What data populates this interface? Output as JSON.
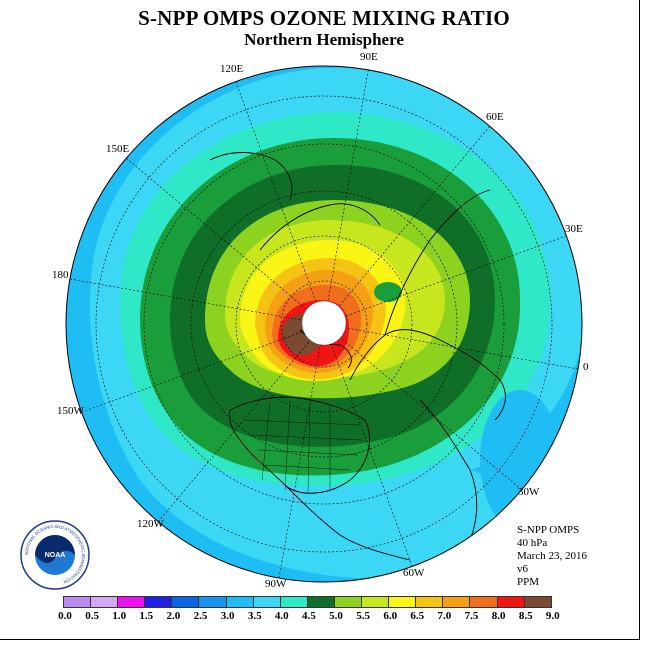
{
  "title": "S-NPP OMPS OZONE MIXING RATIO",
  "subtitle": "Northern Hemisphere",
  "longitude_labels": {
    "lon_90e": "90E",
    "lon_60e": "60E",
    "lon_30e": "30E",
    "lon_0": "0",
    "lon_30w": "30W",
    "lon_60w": "60W",
    "lon_90w": "90W",
    "lon_120w": "120W",
    "lon_150w": "150W",
    "lon_180": "180",
    "lon_150e": "150E",
    "lon_120e": "120E"
  },
  "info": {
    "instrument": "S-NPP OMPS",
    "level": "40 hPa",
    "date": "March 23, 2016",
    "version": "v6",
    "units": "PPM"
  },
  "logo": {
    "agency": "NOAA",
    "ring_text": "NATIONAL OCEANIC AND ATMOSPHERIC ADMINISTRATION"
  },
  "colorbar": {
    "ticks": [
      "0.0",
      "0.5",
      "1.0",
      "1.5",
      "2.0",
      "2.5",
      "3.0",
      "3.5",
      "4.0",
      "4.5",
      "5.0",
      "5.5",
      "6.0",
      "6.5",
      "7.0",
      "7.5",
      "8.0",
      "8.5",
      "9.0"
    ],
    "colors": [
      "#b98cf0",
      "#d7a6f5",
      "#f00ff0",
      "#1e1ee6",
      "#0a64e6",
      "#1496f0",
      "#1ebef5",
      "#3cd7f5",
      "#2ee8c8",
      "#1a9e3c",
      "#0f6e28",
      "#8cd21e",
      "#c8e61e",
      "#faf514",
      "#f5c314",
      "#f5a014",
      "#f06e1e",
      "#f01414",
      "#7a4a32"
    ]
  }
}
